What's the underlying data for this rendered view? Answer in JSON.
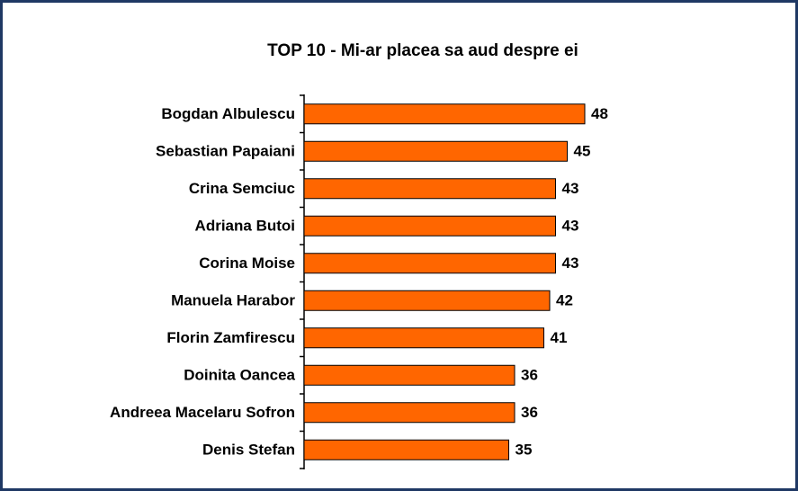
{
  "chart_data": {
    "type": "barh",
    "title": "TOP 10 - Mi-ar placea sa aud despre ei",
    "categories": [
      "Bogdan Albulescu",
      "Sebastian Papaiani",
      "Crina Semciuc",
      "Adriana Butoi",
      "Corina Moise",
      "Manuela Harabor",
      "Florin Zamfirescu",
      "Doinita Oancea",
      "Andreea Macelaru Sofron",
      "Denis Stefan"
    ],
    "values": [
      48,
      45,
      43,
      43,
      43,
      42,
      41,
      36,
      36,
      35
    ],
    "color": "#ff6600",
    "xlim": [
      0,
      80
    ]
  }
}
